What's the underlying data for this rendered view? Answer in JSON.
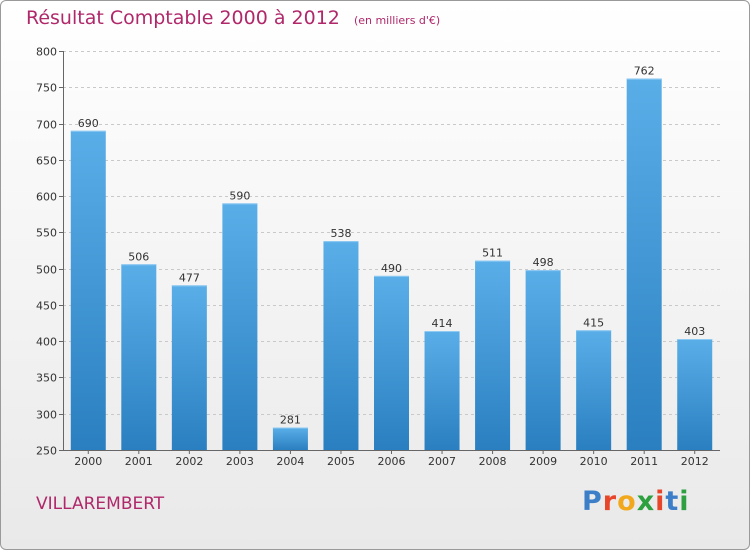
{
  "header": {
    "title": "Résultat Comptable 2000 à 2012",
    "subtitle": "(en milliers d'€)"
  },
  "footer": {
    "town": "VILLAREMBERT",
    "logo_letters": [
      "P",
      "r",
      "o",
      "x",
      "i",
      "t",
      "i"
    ]
  },
  "colors": {
    "title": "#b0286a",
    "bar_top": "#5aaee8",
    "bar_bottom": "#2a7fc0",
    "logo": [
      "#3c7fc8",
      "#e8462a",
      "#f2a81d",
      "#2da040",
      "#e8462a",
      "#3c7fc8",
      "#2da040"
    ]
  },
  "chart_data": {
    "type": "bar",
    "title": "Résultat Comptable 2000 à 2012",
    "subtitle": "(en milliers d'€)",
    "categories": [
      "2000",
      "2001",
      "2002",
      "2003",
      "2004",
      "2005",
      "2006",
      "2007",
      "2008",
      "2009",
      "2010",
      "2011",
      "2012"
    ],
    "values": [
      690,
      506,
      477,
      590,
      281,
      538,
      490,
      414,
      511,
      498,
      415,
      762,
      403
    ],
    "ylim": [
      250,
      800
    ],
    "yticks": [
      250,
      300,
      350,
      400,
      450,
      500,
      550,
      600,
      650,
      700,
      750,
      800
    ],
    "grid": true,
    "data_labels": true
  }
}
